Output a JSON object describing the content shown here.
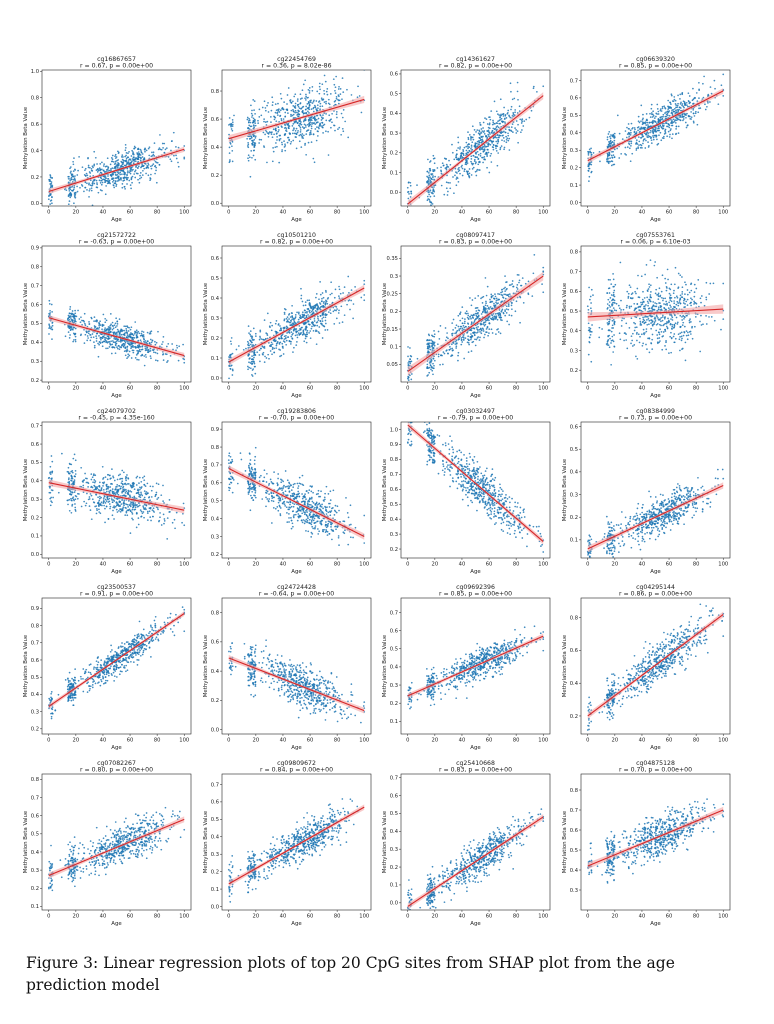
{
  "caption": "Figure 3:  Linear regression plots of top 20 CpG sites from SHAP plot from the age prediction model",
  "colors": {
    "points": "#1f77b4",
    "fit_line": "#d62728",
    "ci_band": "#f4a6a6"
  },
  "chart_data": [
    {
      "type": "scatter",
      "title": "cg16867657",
      "stats": "r = 0.67, p = 0.00e+00",
      "xlabel": "Age",
      "ylabel": "Methylation Beta Value",
      "xlim": [
        -5,
        105
      ],
      "ylim": [
        -0.02,
        1.01
      ],
      "xticks": [
        0,
        20,
        40,
        60,
        80,
        100
      ],
      "yticks": [
        0.0,
        0.2,
        0.4,
        0.6,
        0.8,
        1.0
      ],
      "fit": {
        "x": [
          0,
          100
        ],
        "y": [
          0.09,
          0.41
        ]
      },
      "y_spread": 0.07
    },
    {
      "type": "scatter",
      "title": "cg22454769",
      "stats": "r = 0.36, p = 8.02e-86",
      "xlabel": "Age",
      "ylabel": "Methylation Beta Value",
      "xlim": [
        -5,
        105
      ],
      "ylim": [
        -0.02,
        0.95
      ],
      "xticks": [
        0,
        20,
        40,
        60,
        80,
        100
      ],
      "yticks": [
        0.0,
        0.2,
        0.4,
        0.6,
        0.8
      ],
      "fit": {
        "x": [
          0,
          100
        ],
        "y": [
          0.46,
          0.74
        ]
      },
      "y_spread": 0.1
    },
    {
      "type": "scatter",
      "title": "cg14361627",
      "stats": "r = 0.82, p = 0.00e+00",
      "xlabel": "Age",
      "ylabel": "Methylation Beta Value",
      "xlim": [
        -5,
        105
      ],
      "ylim": [
        -0.07,
        0.62
      ],
      "xticks": [
        0,
        20,
        40,
        60,
        80,
        100
      ],
      "yticks": [
        0.0,
        0.1,
        0.2,
        0.3,
        0.4,
        0.5,
        0.6
      ],
      "fit": {
        "x": [
          0,
          100
        ],
        "y": [
          -0.06,
          0.49
        ]
      },
      "y_spread": 0.06
    },
    {
      "type": "scatter",
      "title": "cg06639320",
      "stats": "r = 0.85, p = 0.00e+00",
      "xlabel": "Age",
      "ylabel": "Methylation Beta Value",
      "xlim": [
        -5,
        105
      ],
      "ylim": [
        -0.02,
        0.76
      ],
      "xticks": [
        0,
        20,
        40,
        60,
        80,
        100
      ],
      "yticks": [
        0.0,
        0.1,
        0.2,
        0.3,
        0.4,
        0.5,
        0.6,
        0.7
      ],
      "fit": {
        "x": [
          0,
          100
        ],
        "y": [
          0.24,
          0.64
        ]
      },
      "y_spread": 0.05
    },
    {
      "type": "scatter",
      "title": "cg21572722",
      "stats": "r = -0.63, p = 0.00e+00",
      "xlabel": "Age",
      "ylabel": "Methylation Beta Value",
      "xlim": [
        -5,
        105
      ],
      "ylim": [
        0.19,
        0.91
      ],
      "xticks": [
        0,
        20,
        40,
        60,
        80,
        100
      ],
      "yticks": [
        0.2,
        0.3,
        0.4,
        0.5,
        0.6,
        0.7,
        0.8,
        0.9
      ],
      "fit": {
        "x": [
          0,
          100
        ],
        "y": [
          0.53,
          0.33
        ]
      },
      "y_spread": 0.04
    },
    {
      "type": "scatter",
      "title": "cg10501210",
      "stats": "r = 0.82, p = 0.00e+00",
      "xlabel": "Age",
      "ylabel": "Methylation Beta Value",
      "xlim": [
        -5,
        105
      ],
      "ylim": [
        -0.02,
        0.66
      ],
      "xticks": [
        0,
        20,
        40,
        60,
        80,
        100
      ],
      "yticks": [
        0.0,
        0.1,
        0.2,
        0.3,
        0.4,
        0.5,
        0.6
      ],
      "fit": {
        "x": [
          0,
          100
        ],
        "y": [
          0.08,
          0.45
        ]
      },
      "y_spread": 0.05
    },
    {
      "type": "scatter",
      "title": "cg08097417",
      "stats": "r = 0.83, p = 0.00e+00",
      "xlabel": "Age",
      "ylabel": "Methylation Beta Value",
      "xlim": [
        -5,
        105
      ],
      "ylim": [
        0.0,
        0.385
      ],
      "xticks": [
        0,
        20,
        40,
        60,
        80,
        100
      ],
      "yticks": [
        0.05,
        0.1,
        0.15,
        0.2,
        0.25,
        0.3,
        0.35
      ],
      "fit": {
        "x": [
          0,
          100
        ],
        "y": [
          0.03,
          0.3
        ]
      },
      "y_spread": 0.03
    },
    {
      "type": "scatter",
      "title": "cg07553761",
      "stats": "r = 0.06, p = 6.10e-03",
      "xlabel": "Age",
      "ylabel": "Methylation Beta Value",
      "xlim": [
        -5,
        105
      ],
      "ylim": [
        0.14,
        0.83
      ],
      "xticks": [
        0,
        20,
        40,
        60,
        80,
        100
      ],
      "yticks": [
        0.2,
        0.3,
        0.4,
        0.5,
        0.6,
        0.7,
        0.8
      ],
      "fit": {
        "x": [
          0,
          100
        ],
        "y": [
          0.47,
          0.51
        ]
      },
      "y_spread": 0.09
    },
    {
      "type": "scatter",
      "title": "cg24079702",
      "stats": "r = -0.45, p = 4.35e-160",
      "xlabel": "Age",
      "ylabel": "Methylation Beta Value",
      "xlim": [
        -5,
        105
      ],
      "ylim": [
        -0.02,
        0.72
      ],
      "xticks": [
        0,
        20,
        40,
        60,
        80,
        100
      ],
      "yticks": [
        0.0,
        0.1,
        0.2,
        0.3,
        0.4,
        0.5,
        0.6,
        0.7
      ],
      "fit": {
        "x": [
          0,
          100
        ],
        "y": [
          0.39,
          0.24
        ]
      },
      "y_spread": 0.06
    },
    {
      "type": "scatter",
      "title": "cg19283806",
      "stats": "r = -0.70, p = 0.00e+00",
      "xlabel": "Age",
      "ylabel": "Methylation Beta Value",
      "xlim": [
        -5,
        105
      ],
      "ylim": [
        0.18,
        0.94
      ],
      "xticks": [
        0,
        20,
        40,
        60,
        80,
        100
      ],
      "yticks": [
        0.2,
        0.3,
        0.4,
        0.5,
        0.6,
        0.7,
        0.8,
        0.9
      ],
      "fit": {
        "x": [
          0,
          100
        ],
        "y": [
          0.68,
          0.3
        ]
      },
      "y_spread": 0.06
    },
    {
      "type": "scatter",
      "title": "cg03032497",
      "stats": "r = -0.79, p = 0.00e+00",
      "xlabel": "Age",
      "ylabel": "Methylation Beta Value",
      "xlim": [
        -5,
        105
      ],
      "ylim": [
        0.14,
        1.05
      ],
      "xticks": [
        0,
        20,
        40,
        60,
        80,
        100
      ],
      "yticks": [
        0.2,
        0.3,
        0.4,
        0.5,
        0.6,
        0.7,
        0.8,
        0.9,
        1.0
      ],
      "fit": {
        "x": [
          0,
          100
        ],
        "y": [
          1.03,
          0.25
        ]
      },
      "y_spread": 0.07
    },
    {
      "type": "scatter",
      "title": "cg08384999",
      "stats": "r = 0.73, p = 0.00e+00",
      "xlabel": "Age",
      "ylabel": "Methylation Beta Value",
      "xlim": [
        -5,
        105
      ],
      "ylim": [
        0.02,
        0.62
      ],
      "xticks": [
        0,
        20,
        40,
        60,
        80,
        100
      ],
      "yticks": [
        0.1,
        0.2,
        0.3,
        0.4,
        0.5,
        0.6
      ],
      "fit": {
        "x": [
          0,
          100
        ],
        "y": [
          0.06,
          0.34
        ]
      },
      "y_spread": 0.04
    },
    {
      "type": "scatter",
      "title": "cg23500537",
      "stats": "r = 0.91, p = 0.00e+00",
      "xlabel": "Age",
      "ylabel": "Methylation Beta Value",
      "xlim": [
        -5,
        105
      ],
      "ylim": [
        0.17,
        0.96
      ],
      "xticks": [
        0,
        20,
        40,
        60,
        80,
        100
      ],
      "yticks": [
        0.2,
        0.3,
        0.4,
        0.5,
        0.6,
        0.7,
        0.8,
        0.9
      ],
      "fit": {
        "x": [
          0,
          100
        ],
        "y": [
          0.33,
          0.87
        ]
      },
      "y_spread": 0.04
    },
    {
      "type": "scatter",
      "title": "cg24724428",
      "stats": "r = -0.64, p = 0.00e+00",
      "xlabel": "Age",
      "ylabel": "Methylation Beta Value",
      "xlim": [
        -5,
        105
      ],
      "ylim": [
        -0.03,
        0.9
      ],
      "xticks": [
        0,
        20,
        40,
        60,
        80,
        100
      ],
      "yticks": [
        0.0,
        0.2,
        0.4,
        0.6,
        0.8
      ],
      "fit": {
        "x": [
          0,
          100
        ],
        "y": [
          0.49,
          0.13
        ]
      },
      "y_spread": 0.07
    },
    {
      "type": "scatter",
      "title": "cg09692396",
      "stats": "r = 0.85, p = 0.00e+00",
      "xlabel": "Age",
      "ylabel": "Methylation Beta Value",
      "xlim": [
        -5,
        105
      ],
      "ylim": [
        0.03,
        0.78
      ],
      "xticks": [
        0,
        20,
        40,
        60,
        80,
        100
      ],
      "yticks": [
        0.1,
        0.2,
        0.3,
        0.4,
        0.5,
        0.6,
        0.7
      ],
      "fit": {
        "x": [
          0,
          100
        ],
        "y": [
          0.24,
          0.57
        ]
      },
      "y_spread": 0.04
    },
    {
      "type": "scatter",
      "title": "cg04295144",
      "stats": "r = 0.86, p = 0.00e+00",
      "xlabel": "Age",
      "ylabel": "Methylation Beta Value",
      "xlim": [
        -5,
        105
      ],
      "ylim": [
        0.09,
        0.92
      ],
      "xticks": [
        0,
        20,
        40,
        60,
        80,
        100
      ],
      "yticks": [
        0.2,
        0.4,
        0.6,
        0.8
      ],
      "fit": {
        "x": [
          0,
          100
        ],
        "y": [
          0.2,
          0.82
        ]
      },
      "y_spread": 0.06
    },
    {
      "type": "scatter",
      "title": "cg07082267",
      "stats": "r = 0.80, p = 0.00e+00",
      "xlabel": "Age",
      "ylabel": "Methylation Beta Value",
      "xlim": [
        -5,
        105
      ],
      "ylim": [
        0.08,
        0.83
      ],
      "xticks": [
        0,
        20,
        40,
        60,
        80,
        100
      ],
      "yticks": [
        0.1,
        0.2,
        0.3,
        0.4,
        0.5,
        0.6,
        0.7,
        0.8
      ],
      "fit": {
        "x": [
          0,
          100
        ],
        "y": [
          0.27,
          0.58
        ]
      },
      "y_spread": 0.05
    },
    {
      "type": "scatter",
      "title": "cg09809672",
      "stats": "r = 0.84, p = 0.00e+00",
      "xlabel": "Age",
      "ylabel": "Methylation Beta Value",
      "xlim": [
        -5,
        105
      ],
      "ylim": [
        -0.02,
        0.76
      ],
      "xticks": [
        0,
        20,
        40,
        60,
        80,
        100
      ],
      "yticks": [
        0.0,
        0.1,
        0.2,
        0.3,
        0.4,
        0.5,
        0.6,
        0.7
      ],
      "fit": {
        "x": [
          0,
          100
        ],
        "y": [
          0.13,
          0.57
        ]
      },
      "y_spread": 0.05
    },
    {
      "type": "scatter",
      "title": "cg25410668",
      "stats": "r = 0.83, p = 0.00e+00",
      "xlabel": "Age",
      "ylabel": "Methylation Beta Value",
      "xlim": [
        -5,
        105
      ],
      "ylim": [
        -0.04,
        0.72
      ],
      "xticks": [
        0,
        20,
        40,
        60,
        80,
        100
      ],
      "yticks": [
        0.0,
        0.1,
        0.2,
        0.3,
        0.4,
        0.5,
        0.6,
        0.7
      ],
      "fit": {
        "x": [
          0,
          100
        ],
        "y": [
          -0.02,
          0.48
        ]
      },
      "y_spread": 0.05
    },
    {
      "type": "scatter",
      "title": "cg04875128",
      "stats": "r = 0.70, p = 0.00e+00",
      "xlabel": "Age",
      "ylabel": "Methylation Beta Value",
      "xlim": [
        -5,
        105
      ],
      "ylim": [
        0.2,
        0.88
      ],
      "xticks": [
        0,
        20,
        40,
        60,
        80,
        100
      ],
      "yticks": [
        0.3,
        0.4,
        0.5,
        0.6,
        0.7,
        0.8
      ],
      "fit": {
        "x": [
          0,
          100
        ],
        "y": [
          0.42,
          0.7
        ]
      },
      "y_spread": 0.05
    }
  ]
}
